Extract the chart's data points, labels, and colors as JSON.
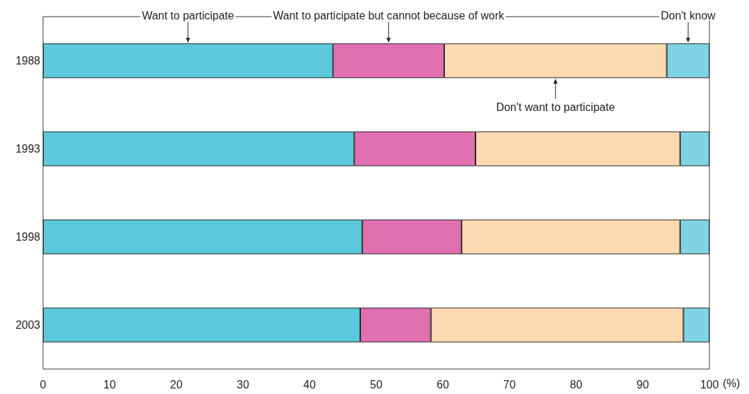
{
  "chart_data": {
    "type": "bar",
    "orientation": "horizontal",
    "stacked": true,
    "categories": [
      "1988",
      "1993",
      "1998",
      "2003"
    ],
    "series": [
      {
        "name": "Want to participate",
        "color": "#5bc8dc",
        "values": [
          43.5,
          46.7,
          47.9,
          47.6
        ]
      },
      {
        "name": "Want to participate but cannot because of work",
        "color": "#e070b0",
        "values": [
          16.7,
          18.2,
          14.9,
          10.6
        ]
      },
      {
        "name": "Don't want to participate",
        "color": "#fcd9b0",
        "values": [
          33.4,
          30.7,
          32.8,
          37.9
        ]
      },
      {
        "name": "Don't know",
        "color": "#7fd3e3",
        "values": [
          6.4,
          4.4,
          4.4,
          3.9
        ]
      }
    ],
    "xlabel": "(%)",
    "xlim": [
      0,
      100
    ],
    "xticks": [
      0,
      10,
      20,
      30,
      40,
      50,
      60,
      70,
      80,
      90,
      100
    ],
    "grid": false,
    "legend": "top"
  }
}
